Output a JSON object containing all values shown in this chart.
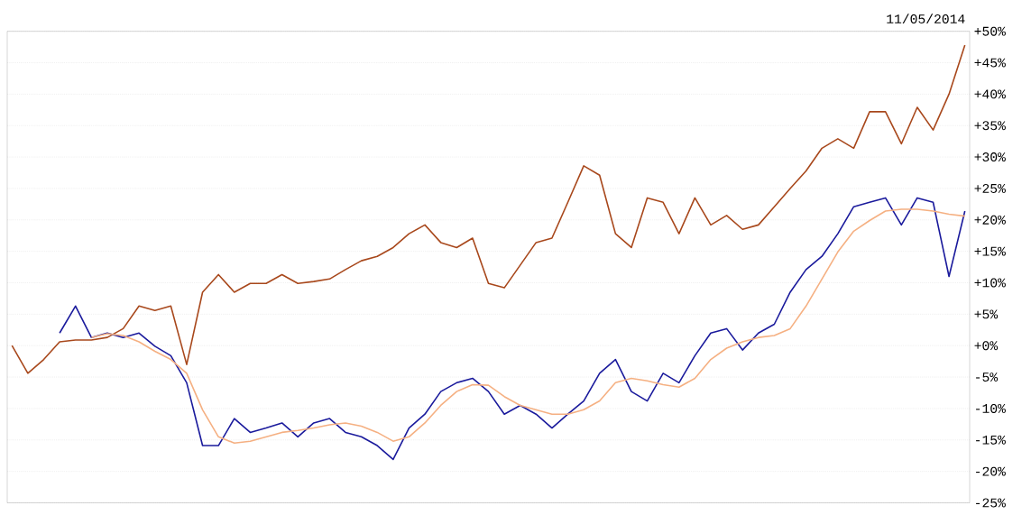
{
  "chart_data": {
    "type": "line",
    "categories": [
      null,
      null,
      null,
      null,
      null,
      null,
      null,
      null,
      null,
      null,
      null,
      null,
      null,
      null,
      null,
      null,
      null,
      null,
      null,
      null,
      null,
      null,
      null,
      null,
      null,
      null,
      null,
      null,
      null,
      null,
      null,
      null,
      null,
      null,
      null,
      null,
      null,
      null,
      null,
      null,
      null,
      null,
      null,
      null,
      null,
      null,
      null,
      null,
      null,
      null,
      null,
      null,
      null,
      null,
      null,
      null,
      null,
      null,
      null,
      null,
      null
    ],
    "series": [
      {
        "color": "#a8481c",
        "values": [
          0,
          -4.4,
          -2.2,
          0.6,
          0.9,
          0.9,
          1.3,
          2.7,
          6.3,
          5.6,
          6.3,
          -3,
          8.5,
          11.3,
          8.5,
          9.9,
          9.9,
          11.3,
          9.9,
          10.2,
          10.6,
          12.1,
          13.5,
          14.2,
          15.6,
          17.8,
          19.2,
          16.4,
          15.6,
          17.1,
          9.9,
          9.2,
          12.8,
          16.4,
          17.1,
          22.8,
          28.6,
          27.1,
          17.8,
          15.6,
          23.5,
          22.8,
          17.8,
          23.5,
          19.2,
          20.7,
          18.5,
          19.2,
          22.1,
          25,
          27.8,
          31.4,
          32.9,
          31.4,
          37.2,
          37.2,
          32.1,
          37.9,
          34.3,
          40,
          47.8
        ]
      },
      {
        "color": "#1a1a9c",
        "values": [
          null,
          null,
          null,
          2,
          6.3,
          1.3,
          2,
          1.3,
          2,
          -0.1,
          -1.6,
          -5.9,
          -15.9,
          -15.9,
          -11.6,
          -13.8,
          -13.1,
          -12.3,
          -14.5,
          -12.3,
          -11.6,
          -13.8,
          -14.5,
          -15.9,
          -18.1,
          -13.1,
          -10.9,
          -7.3,
          -5.9,
          -5.2,
          -7.3,
          -10.9,
          -9.5,
          -10.9,
          -13.1,
          -10.9,
          -8.8,
          -4.4,
          -2.2,
          -7.3,
          -8.8,
          -4.4,
          -5.9,
          -1.6,
          2,
          2.7,
          -0.7,
          2,
          3.4,
          8.5,
          12.1,
          14.2,
          17.8,
          22.1,
          22.8,
          23.5,
          19.2,
          23.5,
          22.8,
          11,
          21.4
        ]
      },
      {
        "color": "#f5b082",
        "values": [
          null,
          null,
          null,
          null,
          null,
          1.3,
          1.9,
          1.6,
          0.6,
          -0.9,
          -2.2,
          -4.4,
          -10.2,
          -14.5,
          -15.5,
          -15.2,
          -14.5,
          -13.8,
          -13.5,
          -13.1,
          -12.6,
          -12.3,
          -12.8,
          -13.8,
          -15.2,
          -14.5,
          -12.3,
          -9.5,
          -7.3,
          -6.2,
          -6.3,
          -8.1,
          -9.5,
          -10.2,
          -10.9,
          -10.9,
          -10.2,
          -8.8,
          -5.9,
          -5.2,
          -5.6,
          -6.2,
          -6.6,
          -5.2,
          -2.2,
          -0.4,
          0.6,
          1.3,
          1.6,
          2.7,
          6.3,
          10.6,
          14.9,
          18.2,
          19.9,
          21.4,
          21.7,
          21.7,
          21.4,
          20.9,
          20.6
        ]
      }
    ],
    "ylim": [
      -25,
      50
    ],
    "yticks": [
      {
        "value": 50,
        "label": "+50%"
      },
      {
        "value": 45,
        "label": "+45%"
      },
      {
        "value": 40,
        "label": "+40%"
      },
      {
        "value": 35,
        "label": "+35%"
      },
      {
        "value": 30,
        "label": "+30%"
      },
      {
        "value": 25,
        "label": "+25%"
      },
      {
        "value": 20,
        "label": "+20%"
      },
      {
        "value": 15,
        "label": "+15%"
      },
      {
        "value": 10,
        "label": "+10%"
      },
      {
        "value": 5,
        "label": "+5%"
      },
      {
        "value": 0,
        "label": "+0%"
      },
      {
        "value": -5,
        "label": "-5%"
      },
      {
        "value": -10,
        "label": "-10%"
      },
      {
        "value": -15,
        "label": "-15%"
      },
      {
        "value": -20,
        "label": "-20%"
      },
      {
        "value": -25,
        "label": "-25%"
      }
    ],
    "grid": "y",
    "tick_labels": "y",
    "annotations": [
      "11/05/2014"
    ]
  }
}
